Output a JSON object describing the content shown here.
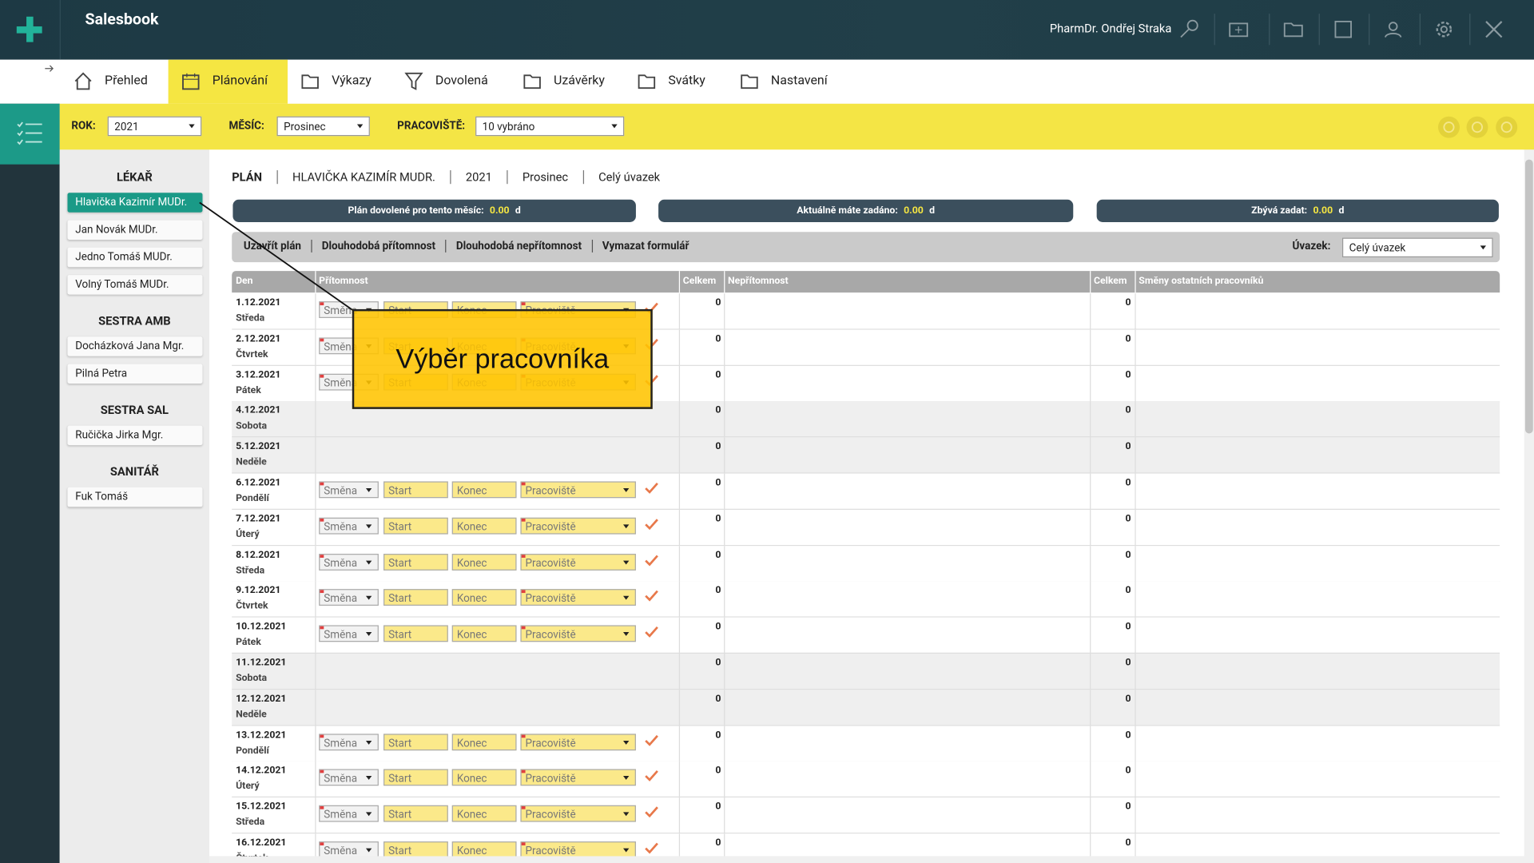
{
  "app": {
    "title": "Salesbook",
    "user": "PharmDr. Ondřej Straka"
  },
  "nav": {
    "tabs": [
      "Přehled",
      "Plánování",
      "Výkazy",
      "Dovolená",
      "Uzávěrky",
      "Svátky",
      "Nastavení"
    ],
    "active": 1
  },
  "filters": [
    {
      "label": "ROK:",
      "value": "2021"
    },
    {
      "label": "MĚSÍC:",
      "value": "Prosinec"
    },
    {
      "label": "PRACOVIŠTĚ:",
      "value": "10 vybráno"
    }
  ],
  "sidebar": {
    "groups": [
      {
        "title": "LÉKAŘ",
        "people": [
          "Hlavička Kazimír MUDr.",
          "Jan Novák MUDr.",
          "Jedno Tomáš MUDr.",
          "Volný Tomáš MUDr."
        ]
      },
      {
        "title": "SESTRA AMB",
        "people": [
          "Docházková Jana Mgr.",
          "Pilná Petra"
        ]
      },
      {
        "title": "SESTRA SAL",
        "people": [
          "Ručička Jirka Mgr."
        ]
      },
      {
        "title": "SANITÁŘ",
        "people": [
          "Fuk Tomáš"
        ]
      }
    ],
    "selected_group": 0,
    "selected_person": 0
  },
  "breadcrumb": [
    "PLÁN",
    "HLAVIČKA KAZIMÍR MUDR.",
    "2021",
    "Prosinec",
    "Celý úvazek"
  ],
  "summary": [
    {
      "label": "Plán dovolené pro tento měsíc:",
      "value": "0.00",
      "unit": "d"
    },
    {
      "label": "Aktuálně máte zadáno:",
      "value": "0.00",
      "unit": "d"
    },
    {
      "label": "Zbývá zadat:",
      "value": "0.00",
      "unit": "d"
    }
  ],
  "actions": [
    "Uzavřít plán",
    "Dlouhodobá přítomnost",
    "Dlouhodobá nepřítomnost",
    "Vymazat formulář"
  ],
  "workload": {
    "label": "Úvazek:",
    "value": "Celý úvazek"
  },
  "table": {
    "headers": [
      "Den",
      "Přítomnost",
      "Celkem",
      "Nepřítomnost",
      "Celkem",
      "Směny ostatních pracovníků"
    ],
    "placeholders": [
      "Směna",
      "Start",
      "Konec",
      "Pracoviště"
    ],
    "rows": [
      {
        "date": "1.12.2021",
        "day": "Středa",
        "editable": true,
        "presence_total": 0,
        "absence_total": 0
      },
      {
        "date": "2.12.2021",
        "day": "Čtvrtek",
        "editable": true,
        "presence_total": 0,
        "absence_total": 0
      },
      {
        "date": "3.12.2021",
        "day": "Pátek",
        "editable": true,
        "presence_total": 0,
        "absence_total": 0
      },
      {
        "date": "4.12.2021",
        "day": "Sobota",
        "editable": false,
        "presence_total": 0,
        "absence_total": 0
      },
      {
        "date": "5.12.2021",
        "day": "Neděle",
        "editable": false,
        "presence_total": 0,
        "absence_total": 0
      },
      {
        "date": "6.12.2021",
        "day": "Pondělí",
        "editable": true,
        "presence_total": 0,
        "absence_total": 0
      },
      {
        "date": "7.12.2021",
        "day": "Úterý",
        "editable": true,
        "presence_total": 0,
        "absence_total": 0
      },
      {
        "date": "8.12.2021",
        "day": "Středa",
        "editable": true,
        "presence_total": 0,
        "absence_total": 0
      },
      {
        "date": "9.12.2021",
        "day": "Čtvrtek",
        "editable": true,
        "presence_total": 0,
        "absence_total": 0
      },
      {
        "date": "10.12.2021",
        "day": "Pátek",
        "editable": true,
        "presence_total": 0,
        "absence_total": 0
      },
      {
        "date": "11.12.2021",
        "day": "Sobota",
        "editable": false,
        "presence_total": 0,
        "absence_total": 0
      },
      {
        "date": "12.12.2021",
        "day": "Neděle",
        "editable": false,
        "presence_total": 0,
        "absence_total": 0
      },
      {
        "date": "13.12.2021",
        "day": "Pondělí",
        "editable": true,
        "presence_total": 0,
        "absence_total": 0
      },
      {
        "date": "14.12.2021",
        "day": "Úterý",
        "editable": true,
        "presence_total": 0,
        "absence_total": 0
      },
      {
        "date": "15.12.2021",
        "day": "Středa",
        "editable": true,
        "presence_total": 0,
        "absence_total": 0
      },
      {
        "date": "16.12.2021",
        "day": "Čtvrtek",
        "editable": true,
        "presence_total": 0,
        "absence_total": 0
      }
    ]
  },
  "callout": "Výběr pracovníka"
}
